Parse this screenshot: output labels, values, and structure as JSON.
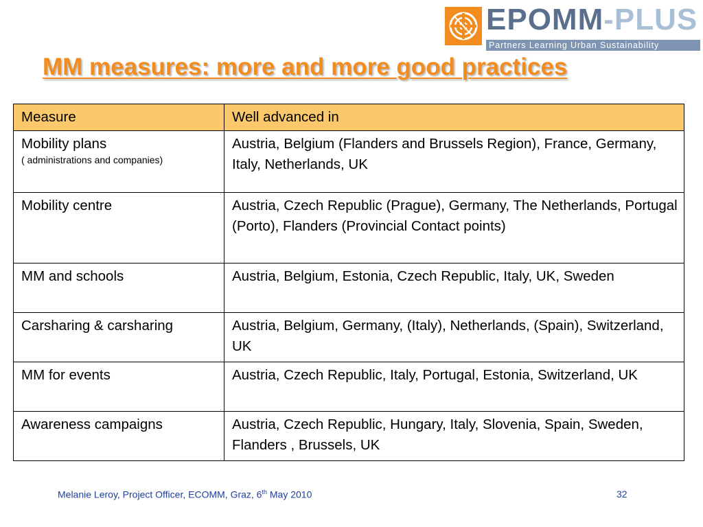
{
  "logo": {
    "word_part1": "EPOMM",
    "word_part2": "-PLUS",
    "tagline": "Partners Learning Urban Sustainability",
    "colors": {
      "mark": "#f28c1f",
      "word": "#5a6f8c",
      "word_light": "#a9bfd6",
      "tagline_bg": "#7f94b3"
    }
  },
  "title": "MM measures: more and more good practices",
  "table": {
    "header_color": "#fbc96b",
    "headers": [
      "Measure",
      "Well advanced in"
    ],
    "rows": [
      {
        "measure": "Mobility plans",
        "note": "( administrations and companies)",
        "countries": "Austria, Belgium (Flanders and Brussels Region), France, Germany, Italy, Netherlands, UK"
      },
      {
        "measure": "Mobility centre",
        "countries": "Austria, Czech Republic (Prague), Germany, The Netherlands, Portugal (Porto), Flanders (Provincial Contact points)"
      },
      {
        "measure": "MM and schools",
        "countries": "Austria, Belgium, Estonia, Czech Republic, Italy, UK, Sweden"
      },
      {
        "measure": "Carsharing & carsharing",
        "countries": "Austria, Belgium, Germany, (Italy), Netherlands, (Spain), Switzerland, UK"
      },
      {
        "measure": "MM for events",
        "countries": "Austria, Czech Republic, Italy, Portugal, Estonia, Switzerland, UK"
      },
      {
        "measure": "Awareness campaigns",
        "countries": "Austria, Czech Republic, Hungary, Italy, Slovenia, Spain, Sweden, Flanders , Brussels, UK"
      }
    ]
  },
  "footer": {
    "text_before": "Melanie Leroy, Project Officer, ECOMM, Graz, 6",
    "superscript": "th",
    "text_after": " May 2010",
    "page_number": "32"
  }
}
